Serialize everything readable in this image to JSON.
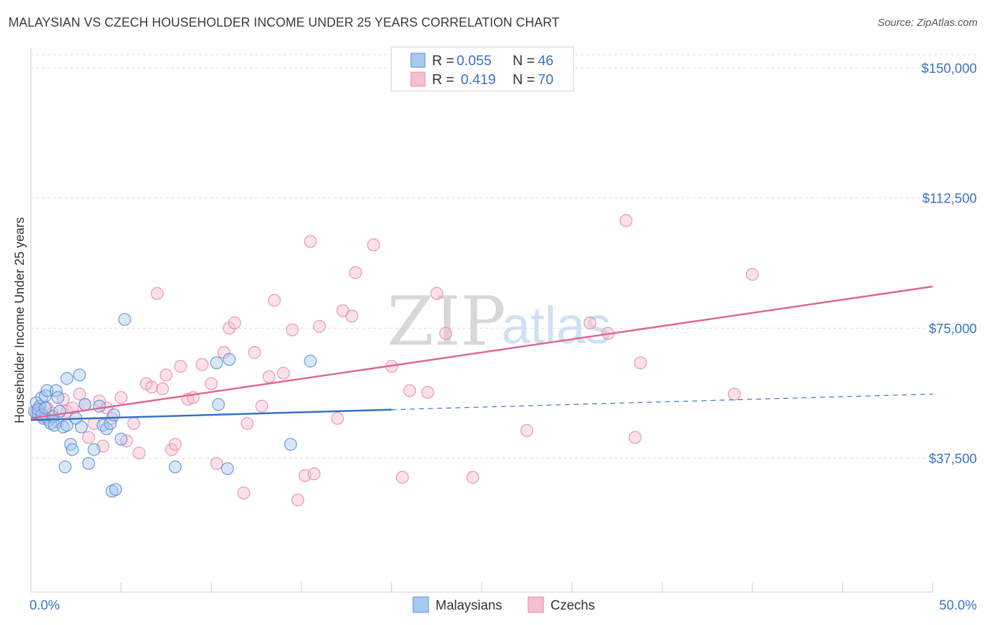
{
  "title": "MALAYSIAN VS CZECH HOUSEHOLDER INCOME UNDER 25 YEARS CORRELATION CHART",
  "source": "Source: ZipAtlas.com",
  "watermark": {
    "zip": "ZIP",
    "atlas": "atlas"
  },
  "colors": {
    "malaysians_fill": "#a9c8f0",
    "malaysians_stroke": "#5b8fd9",
    "malaysians_line": "#2f72c9",
    "czechs_fill": "#f6bfd0",
    "czechs_stroke": "#e88aa8",
    "czechs_line": "#e0668f",
    "tick_label": "#3b73c4",
    "grid": "#dddddd"
  },
  "legend": {
    "rows": [
      {
        "r_label": "R =",
        "r_value": "0.055",
        "n_label": "N =",
        "n_value": "46"
      },
      {
        "r_label": "R =",
        "r_value": "0.419",
        "n_label": "N =",
        "n_value": "70"
      }
    ]
  },
  "chart_data": {
    "type": "scatter",
    "title": "MALAYSIAN VS CZECH HOUSEHOLDER INCOME UNDER 25 YEARS CORRELATION CHART",
    "xlabel": "",
    "ylabel": "Householder Income Under 25 years",
    "xlim": [
      0,
      50
    ],
    "ylim": [
      0,
      155000
    ],
    "x_tick_labels": [
      "0.0%",
      "50.0%"
    ],
    "y_ticks": [
      37500,
      75000,
      112500,
      150000
    ],
    "y_tick_labels": [
      "$37,500",
      "$75,000",
      "$112,500",
      "$150,000"
    ],
    "grid": true,
    "series": [
      {
        "name": "Malaysians",
        "r": 0.055,
        "n": 46,
        "trend": {
          "x0": 0,
          "y0": 48500,
          "x1": 20,
          "y1": 51500,
          "dashed_to_x": 50,
          "dashed_to_y": 56000
        },
        "points": [
          [
            0.2,
            51000
          ],
          [
            0.3,
            53500
          ],
          [
            0.4,
            50500
          ],
          [
            0.5,
            52500
          ],
          [
            0.6,
            55000
          ],
          [
            0.7,
            49000
          ],
          [
            0.8,
            55500
          ],
          [
            0.9,
            57000
          ],
          [
            1.0,
            48500
          ],
          [
            1.1,
            47500
          ],
          [
            1.2,
            49500
          ],
          [
            1.3,
            47000
          ],
          [
            1.4,
            57000
          ],
          [
            1.5,
            55000
          ],
          [
            1.6,
            51000
          ],
          [
            1.8,
            46500
          ],
          [
            2.0,
            60500
          ],
          [
            2.0,
            47000
          ],
          [
            2.2,
            41500
          ],
          [
            2.3,
            40000
          ],
          [
            2.5,
            49000
          ],
          [
            2.7,
            61500
          ],
          [
            2.8,
            46500
          ],
          [
            3.0,
            53000
          ],
          [
            3.2,
            36000
          ],
          [
            3.5,
            40000
          ],
          [
            3.8,
            52500
          ],
          [
            4.0,
            47000
          ],
          [
            4.2,
            46000
          ],
          [
            4.4,
            47500
          ],
          [
            4.5,
            28000
          ],
          [
            4.6,
            50000
          ],
          [
            4.7,
            28500
          ],
          [
            5.0,
            43000
          ],
          [
            5.2,
            77500
          ],
          [
            8.0,
            35000
          ],
          [
            10.3,
            65000
          ],
          [
            10.4,
            53000
          ],
          [
            10.9,
            34500
          ],
          [
            11.0,
            66000
          ],
          [
            14.4,
            41500
          ],
          [
            15.5,
            65500
          ],
          [
            0.4,
            51500
          ],
          [
            0.6,
            50000
          ],
          [
            1.9,
            35000
          ],
          [
            0.8,
            52000
          ]
        ]
      },
      {
        "name": "Czechs",
        "r": 0.419,
        "n": 70,
        "trend": {
          "x0": 0,
          "y0": 49000,
          "x1": 50,
          "y1": 87000
        },
        "points": [
          [
            0.3,
            50500
          ],
          [
            0.5,
            51500
          ],
          [
            0.7,
            49500
          ],
          [
            0.9,
            52000
          ],
          [
            1.2,
            50500
          ],
          [
            1.5,
            48000
          ],
          [
            1.8,
            54500
          ],
          [
            2.0,
            51000
          ],
          [
            2.3,
            52000
          ],
          [
            2.7,
            56000
          ],
          [
            3.0,
            53000
          ],
          [
            3.2,
            43500
          ],
          [
            3.5,
            47500
          ],
          [
            3.8,
            54000
          ],
          [
            4.0,
            41000
          ],
          [
            4.2,
            52000
          ],
          [
            4.5,
            49000
          ],
          [
            5.0,
            55000
          ],
          [
            5.3,
            42500
          ],
          [
            5.7,
            47500
          ],
          [
            6.0,
            39000
          ],
          [
            6.4,
            59000
          ],
          [
            6.7,
            58000
          ],
          [
            7.0,
            85000
          ],
          [
            7.3,
            57500
          ],
          [
            7.5,
            61500
          ],
          [
            7.8,
            40000
          ],
          [
            8.0,
            41500
          ],
          [
            8.3,
            64000
          ],
          [
            8.7,
            54500
          ],
          [
            9.0,
            55000
          ],
          [
            9.5,
            64500
          ],
          [
            10.0,
            59000
          ],
          [
            10.3,
            36000
          ],
          [
            10.7,
            68000
          ],
          [
            11.0,
            75000
          ],
          [
            11.3,
            76500
          ],
          [
            11.8,
            27500
          ],
          [
            12.0,
            47500
          ],
          [
            12.4,
            68000
          ],
          [
            12.8,
            52500
          ],
          [
            13.2,
            61000
          ],
          [
            13.5,
            83000
          ],
          [
            14.0,
            62000
          ],
          [
            14.5,
            74500
          ],
          [
            14.8,
            25500
          ],
          [
            15.2,
            32500
          ],
          [
            15.5,
            100000
          ],
          [
            15.7,
            33000
          ],
          [
            16.0,
            75500
          ],
          [
            17.0,
            49000
          ],
          [
            17.3,
            80000
          ],
          [
            17.8,
            78500
          ],
          [
            18.0,
            91000
          ],
          [
            19.0,
            99000
          ],
          [
            20.0,
            64000
          ],
          [
            20.6,
            32000
          ],
          [
            21.0,
            57000
          ],
          [
            22.0,
            56500
          ],
          [
            22.5,
            85000
          ],
          [
            23.0,
            73500
          ],
          [
            24.5,
            32000
          ],
          [
            27.5,
            45500
          ],
          [
            31.0,
            76500
          ],
          [
            32.0,
            73500
          ],
          [
            33.0,
            106000
          ],
          [
            33.5,
            43500
          ],
          [
            33.8,
            65000
          ],
          [
            39.0,
            56000
          ],
          [
            40.0,
            90500
          ]
        ]
      }
    ]
  }
}
